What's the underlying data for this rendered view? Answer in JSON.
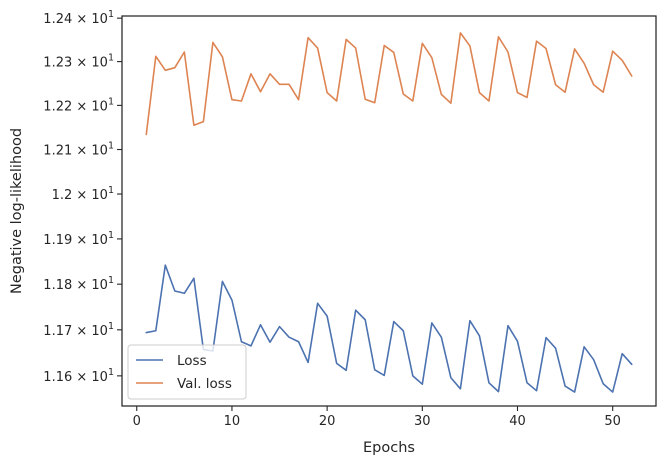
{
  "chart_data": {
    "type": "line",
    "title": "",
    "xlabel": "Epochs",
    "ylabel": "Negative log-likelihood",
    "xlim": [
      -1.55,
      54.55
    ],
    "ylim": [
      11.535,
      12.405
    ],
    "yscale": "log",
    "grid": false,
    "legend_position": "lower-left",
    "x_ticks": [
      {
        "value": 0,
        "label": "0"
      },
      {
        "value": 10,
        "label": "10"
      },
      {
        "value": 20,
        "label": "20"
      },
      {
        "value": 30,
        "label": "30"
      },
      {
        "value": 40,
        "label": "40"
      },
      {
        "value": 50,
        "label": "50"
      }
    ],
    "y_ticks": [
      {
        "value": 11.6,
        "base": "1.16",
        "exp": "1"
      },
      {
        "value": 11.7,
        "base": "1.17",
        "exp": "1"
      },
      {
        "value": 11.8,
        "base": "1.18",
        "exp": "1"
      },
      {
        "value": 11.9,
        "base": "1.19",
        "exp": "1"
      },
      {
        "value": 12.0,
        "base": "1.2",
        "exp": "1"
      },
      {
        "value": 12.1,
        "base": "1.21",
        "exp": "1"
      },
      {
        "value": 12.2,
        "base": "1.22",
        "exp": "1"
      },
      {
        "value": 12.3,
        "base": "1.23",
        "exp": "1"
      },
      {
        "value": 12.4,
        "base": "1.24",
        "exp": "1"
      }
    ],
    "y_tick_prefix": "× 10",
    "series": [
      {
        "name": "Loss",
        "color": "#4c72b0",
        "x": [
          1,
          2,
          3,
          4,
          5,
          6,
          7,
          8,
          9,
          10,
          11,
          12,
          13,
          14,
          15,
          16,
          17,
          18,
          19,
          20,
          21,
          22,
          23,
          24,
          25,
          26,
          27,
          28,
          29,
          30,
          31,
          32,
          33,
          34,
          35,
          36,
          37,
          38,
          39,
          40,
          41,
          42,
          43,
          44,
          45,
          46,
          47,
          48,
          49,
          50,
          51,
          52
        ],
        "values": [
          11.694,
          11.698,
          11.842,
          11.785,
          11.78,
          11.813,
          11.657,
          11.654,
          11.806,
          11.765,
          11.674,
          11.665,
          11.711,
          11.673,
          11.707,
          11.684,
          11.674,
          11.629,
          11.758,
          11.73,
          11.627,
          11.612,
          11.743,
          11.722,
          11.613,
          11.601,
          11.718,
          11.698,
          11.6,
          11.582,
          11.715,
          11.684,
          11.596,
          11.572,
          11.72,
          11.687,
          11.585,
          11.566,
          11.709,
          11.675,
          11.585,
          11.568,
          11.683,
          11.66,
          11.578,
          11.565,
          11.663,
          11.635,
          11.583,
          11.565,
          11.648,
          11.625
        ]
      },
      {
        "name": "Val. loss",
        "color": "#dd8452",
        "x": [
          1,
          2,
          3,
          4,
          5,
          6,
          7,
          8,
          9,
          10,
          11,
          12,
          13,
          14,
          15,
          16,
          17,
          18,
          19,
          20,
          21,
          22,
          23,
          24,
          25,
          26,
          27,
          28,
          29,
          30,
          31,
          32,
          33,
          34,
          35,
          36,
          37,
          38,
          39,
          40,
          41,
          42,
          43,
          44,
          45,
          46,
          47,
          48,
          49,
          50,
          51,
          52
        ],
        "values": [
          12.134,
          12.312,
          12.28,
          12.286,
          12.322,
          12.155,
          12.163,
          12.344,
          12.311,
          12.213,
          12.21,
          12.272,
          12.231,
          12.272,
          12.248,
          12.248,
          12.213,
          12.355,
          12.331,
          12.229,
          12.21,
          12.351,
          12.331,
          12.214,
          12.206,
          12.337,
          12.321,
          12.226,
          12.21,
          12.342,
          12.309,
          12.225,
          12.205,
          12.366,
          12.336,
          12.229,
          12.21,
          12.357,
          12.322,
          12.229,
          12.218,
          12.347,
          12.33,
          12.247,
          12.23,
          12.329,
          12.296,
          12.247,
          12.23,
          12.324,
          12.303,
          12.267
        ]
      }
    ]
  }
}
